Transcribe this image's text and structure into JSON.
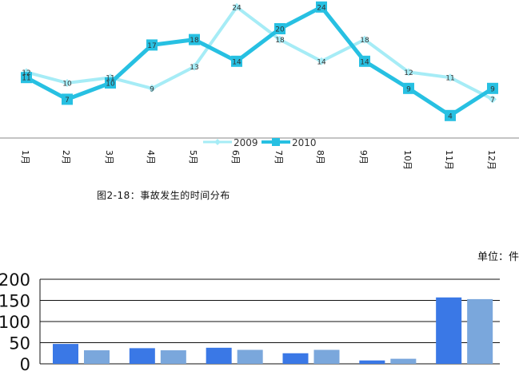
{
  "caption": "图2-18：事故发生的时间分布",
  "unit_label": "单位：件",
  "chart_data": [
    {
      "type": "line",
      "categories": [
        "1月",
        "2月",
        "3月",
        "4月",
        "5月",
        "6月",
        "7月",
        "8月",
        "9月",
        "10月",
        "11月",
        "12月"
      ],
      "series": [
        {
          "name": "2009",
          "values": [
            12,
            10,
            11,
            9,
            13,
            24,
            18,
            14,
            18,
            12,
            11,
            7
          ],
          "color": "#a6ecf6"
        },
        {
          "name": "2010",
          "values": [
            11,
            7,
            10,
            17,
            18,
            14,
            20,
            24,
            14,
            9,
            4,
            9
          ],
          "color": "#27c0e2"
        }
      ],
      "legend": "bottom-center",
      "grid": false,
      "data_labels": true
    },
    {
      "type": "bar",
      "categories": [
        "",
        "",
        "",
        "",
        "",
        ""
      ],
      "series": [
        {
          "values": [
            47,
            37,
            38,
            25,
            8,
            157
          ],
          "color": "#3a78e6"
        },
        {
          "values": [
            32,
            32,
            33,
            33,
            12,
            153
          ],
          "color": "#7aa7dc"
        }
      ],
      "ylim": [
        0,
        200
      ],
      "yticks": [
        0,
        50,
        100,
        150,
        200
      ],
      "grid": true
    }
  ]
}
